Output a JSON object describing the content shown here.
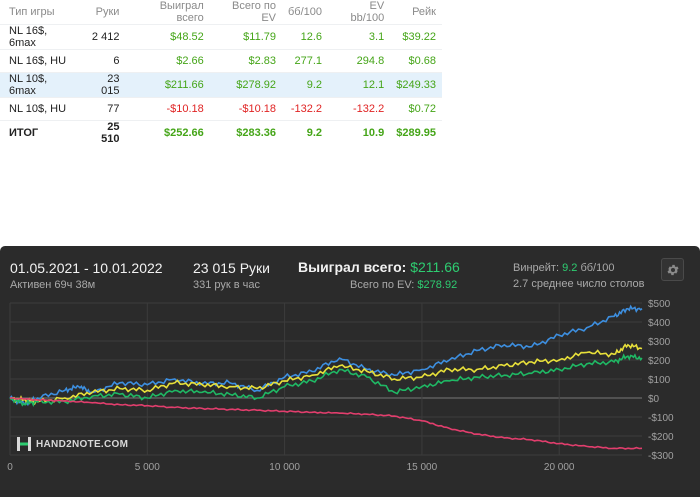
{
  "table": {
    "headers": [
      "Тип игры",
      "Руки",
      "Выиграл всего",
      "Всего по EV",
      "бб/100",
      "EV bb/100",
      "Рейк"
    ],
    "rows": [
      {
        "cells": [
          "NL 16$, 6max",
          "2 412",
          "$48.52",
          "$11.79",
          "12.6",
          "3.1",
          "$39.22"
        ],
        "classes": [
          "",
          "",
          "pos",
          "pos",
          "pos",
          "pos",
          "pos"
        ]
      },
      {
        "cells": [
          "NL 16$, HU",
          "6",
          "$2.66",
          "$2.83",
          "277.1",
          "294.8",
          "$0.68"
        ],
        "classes": [
          "",
          "",
          "pos",
          "pos",
          "pos",
          "pos",
          "pos"
        ]
      },
      {
        "cells": [
          "NL 10$, 6max",
          "23 015",
          "$211.66",
          "$278.92",
          "9.2",
          "12.1",
          "$249.33"
        ],
        "classes": [
          "",
          "",
          "pos",
          "pos",
          "pos",
          "pos",
          "pos"
        ],
        "selected": true
      },
      {
        "cells": [
          "NL 10$, HU",
          "77",
          "-$10.18",
          "-$10.18",
          "-132.2",
          "-132.2",
          "$0.72"
        ],
        "classes": [
          "",
          "",
          "neg",
          "neg",
          "neg",
          "neg",
          "pos"
        ]
      },
      {
        "cells": [
          "ИТОГ",
          "25 510",
          "$252.66",
          "$283.36",
          "9.2",
          "10.9",
          "$289.95"
        ],
        "classes": [
          "",
          "",
          "pos",
          "pos",
          "pos",
          "pos",
          "pos"
        ],
        "total": true
      }
    ]
  },
  "panel": {
    "date_range": "01.05.2021 - 10.01.2022",
    "active": "Активен 69ч 38м",
    "hands": "23 015 Руки",
    "hands_per_hour": "331 рук в час",
    "won_label": "Выиграл всего:",
    "won_value": "$211.66",
    "ev_label": "Всего по EV:",
    "ev_value": "$278.92",
    "winrate_label": "Винрейт:",
    "winrate_value": "9.2",
    "winrate_unit": "бб/100",
    "avg_tables": "2.7 среднее число столов",
    "settings_icon": "gear-icon",
    "logo_text": "HAND2NOTE.COM"
  },
  "chart_data": {
    "type": "line",
    "x_range": [
      0,
      23015
    ],
    "ylim": [
      -300,
      500
    ],
    "x_ticks": [
      0,
      5000,
      10000,
      15000,
      20000
    ],
    "x_tick_labels": [
      "0",
      "5 000",
      "10 000",
      "15 000",
      "20 000"
    ],
    "y_ticks": [
      500,
      400,
      300,
      200,
      100,
      0,
      -100,
      -200,
      -300
    ],
    "y_tick_labels": [
      "$500",
      "$400",
      "$300",
      "$200",
      "$100",
      "$0",
      "-$100",
      "-$200",
      "-$300"
    ],
    "grid": true,
    "series": [
      {
        "color": "#3d8fe0",
        "x": [
          0,
          500,
          1000,
          2000,
          2500,
          3000,
          4000,
          5000,
          6000,
          7000,
          8000,
          9000,
          10000,
          11000,
          12000,
          13000,
          14000,
          15000,
          16000,
          17000,
          18000,
          19000,
          20000,
          21000,
          22000,
          22500,
          23015
        ],
        "values": [
          0,
          -30,
          0,
          40,
          60,
          30,
          80,
          70,
          100,
          75,
          80,
          40,
          110,
          140,
          210,
          150,
          120,
          150,
          200,
          250,
          280,
          270,
          330,
          370,
          430,
          470,
          470
        ]
      },
      {
        "color": "#e8e03a",
        "x": [
          0,
          500,
          1000,
          2000,
          3000,
          4000,
          5000,
          6000,
          7000,
          8000,
          9000,
          10000,
          11000,
          12000,
          13000,
          14000,
          15000,
          16000,
          17000,
          18000,
          19000,
          20000,
          21000,
          22000,
          22500,
          23015
        ],
        "values": [
          0,
          -10,
          -20,
          0,
          30,
          50,
          40,
          80,
          70,
          60,
          50,
          90,
          120,
          170,
          140,
          100,
          110,
          150,
          150,
          170,
          190,
          200,
          240,
          230,
          280,
          260
        ]
      },
      {
        "color": "#1fb864",
        "x": [
          0,
          500,
          1000,
          2000,
          3000,
          4000,
          5000,
          6000,
          7000,
          8000,
          9000,
          10000,
          11000,
          12000,
          13000,
          14000,
          15000,
          16000,
          17000,
          18000,
          19000,
          20000,
          21000,
          22000,
          22500,
          23015
        ],
        "values": [
          0,
          -30,
          -20,
          -20,
          10,
          20,
          0,
          40,
          30,
          20,
          0,
          60,
          90,
          150,
          110,
          30,
          60,
          90,
          110,
          120,
          130,
          150,
          180,
          190,
          220,
          210
        ]
      },
      {
        "color": "#e23e6d",
        "x": [
          0,
          1000,
          2000,
          3000,
          4000,
          5000,
          6000,
          7000,
          8000,
          9000,
          10000,
          11000,
          12000,
          13000,
          14000,
          15000,
          16000,
          17000,
          18000,
          19000,
          20000,
          21000,
          22000,
          23015
        ],
        "values": [
          0,
          -10,
          -15,
          -25,
          -35,
          -40,
          -50,
          -55,
          -60,
          -65,
          -70,
          -75,
          -80,
          -85,
          -95,
          -120,
          -160,
          -190,
          -210,
          -220,
          -240,
          -255,
          -265,
          -265
        ]
      }
    ]
  }
}
